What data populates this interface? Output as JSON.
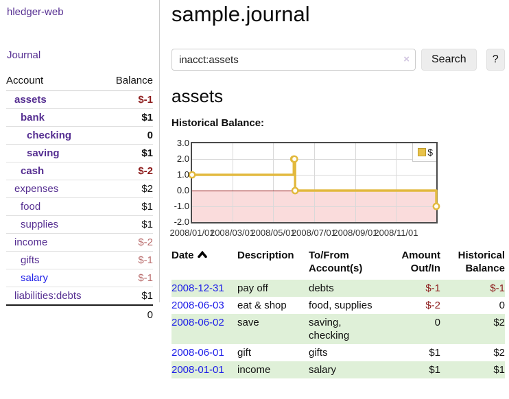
{
  "app": {
    "brand": "hledger-web"
  },
  "nav": {
    "journal": "Journal"
  },
  "sidebar": {
    "header": {
      "account": "Account",
      "balance": "Balance"
    },
    "accounts": [
      {
        "name": "assets",
        "balance": "$-1"
      },
      {
        "name": "bank",
        "balance": "$1"
      },
      {
        "name": "checking",
        "balance": "0"
      },
      {
        "name": "saving",
        "balance": "$1"
      },
      {
        "name": "cash",
        "balance": "$-2"
      },
      {
        "name": "expenses",
        "balance": "$2"
      },
      {
        "name": "food",
        "balance": "$1"
      },
      {
        "name": "supplies",
        "balance": "$1"
      },
      {
        "name": "income",
        "balance": "$-2"
      },
      {
        "name": "gifts",
        "balance": "$-1"
      },
      {
        "name": "salary",
        "balance": "$-1"
      },
      {
        "name": "liabilities:debts",
        "balance": "$1"
      }
    ],
    "total": "0"
  },
  "main": {
    "title": "sample.journal",
    "search": {
      "value": "inacct:assets",
      "clear": "×",
      "submit": "Search",
      "help": "?"
    },
    "account_title": "assets",
    "chart_heading": "Historical Balance:"
  },
  "chart_data": {
    "type": "line",
    "step": true,
    "title": "Historical Balance",
    "series": [
      {
        "name": "$",
        "points": [
          [
            "2008-01-01",
            1
          ],
          [
            "2008-06-01",
            2
          ],
          [
            "2008-06-02",
            2
          ],
          [
            "2008-06-03",
            0
          ],
          [
            "2008-12-31",
            -1
          ]
        ]
      }
    ],
    "x_ticks": [
      "2008/01/01",
      "2008/03/01",
      "2008/05/01",
      "2008/07/01",
      "2008/09/01",
      "2008/11/01"
    ],
    "y_ticks": [
      3.0,
      2.0,
      1.0,
      0.0,
      -1.0,
      -2.0
    ],
    "ylim": [
      -2,
      3
    ],
    "x_range": [
      "2008-01-01",
      "2008-12-31"
    ],
    "grid": true,
    "legend": {
      "label": "$",
      "position": "ne"
    },
    "negative_region_shaded": true,
    "colors": {
      "line": "#e2b93e",
      "marker_fill": "#fffdf5",
      "negative_fill": "#fadcdc",
      "zero_line": "#8b0000"
    }
  },
  "register": {
    "columns": [
      {
        "label": "Date",
        "sorted": "asc"
      },
      {
        "label": "Description"
      },
      {
        "label": "To/From Account(s)"
      },
      {
        "label": "Amount Out/In"
      },
      {
        "label": "Historical Balance"
      }
    ],
    "rows": [
      {
        "date": "2008-12-31",
        "description": "pay off",
        "accounts": "debts",
        "amount": "$-1",
        "balance": "$-1"
      },
      {
        "date": "2008-06-03",
        "description": "eat & shop",
        "accounts": "food, supplies",
        "amount": "$-2",
        "balance": "0"
      },
      {
        "date": "2008-06-02",
        "description": "save",
        "accounts": "saving, checking",
        "amount": "0",
        "balance": "$2"
      },
      {
        "date": "2008-06-01",
        "description": "gift",
        "accounts": "gifts",
        "amount": "$1",
        "balance": "$2"
      },
      {
        "date": "2008-01-01",
        "description": "income",
        "accounts": "salary",
        "amount": "$1",
        "balance": "$1"
      }
    ]
  },
  "colors": {
    "link_purple": "#552e91",
    "link_blue": "#1d1de8",
    "negative_strong": "#8c1a1a",
    "negative_soft": "#b96c6c",
    "row_green": "#dff0d8",
    "chart_gold": "#e2b93e"
  }
}
